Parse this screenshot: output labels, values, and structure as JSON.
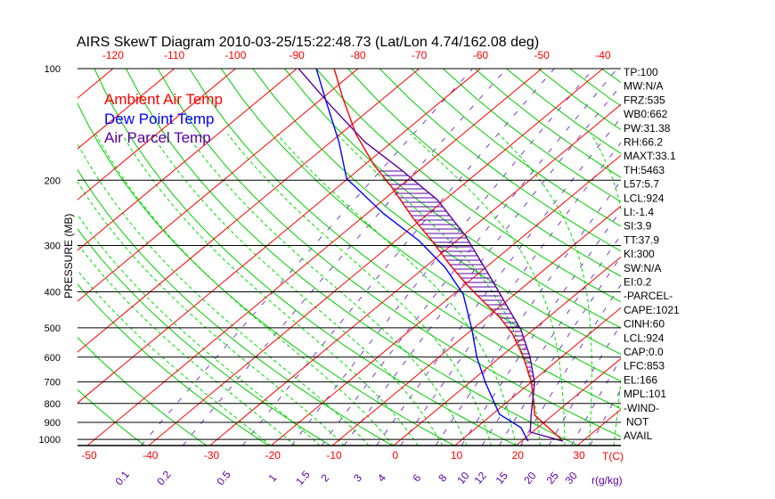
{
  "chart_data": {
    "type": "line",
    "title": "AIRS SkewT Diagram 2010-03-25/15:22:48.73 (Lat/Lon 4.74/162.08 deg)",
    "ylabel": "PRESSURE (MB)",
    "xlabel": "T(C)",
    "mixing_ratio_label": "r(g/kg)",
    "ylim": [
      1040,
      100
    ],
    "pressure_ticks": [
      "100",
      "200",
      "300",
      "400",
      "500",
      "600",
      "700",
      "800",
      "900",
      "1000"
    ],
    "top_temp_ticks": [
      "-120",
      "-110",
      "-100",
      "-90",
      "-80",
      "-70",
      "-60",
      "-50",
      "-40"
    ],
    "bottom_temp_ticks": [
      "-50",
      "-40",
      "-30",
      "-20",
      "-10",
      "0",
      "10",
      "20",
      "30"
    ],
    "mixing_ratio_ticks": [
      "0.1",
      "0.2",
      "0.5",
      "1",
      "1.5",
      "2",
      "3",
      "4",
      "6",
      "8",
      "10",
      "12",
      "15",
      "20",
      "25",
      "30"
    ],
    "legend": [
      {
        "label": "Ambient Air Temp",
        "color": "#ff0000"
      },
      {
        "label": "Dew Point Temp",
        "color": "#0000ff"
      },
      {
        "label": "Air Parcel Temp",
        "color": "#5a00a0"
      }
    ],
    "series": [
      {
        "name": "Ambient Air Temp",
        "color": "#ff0000",
        "p": [
          1000,
          861,
          700,
          600,
          520,
          466,
          429,
          384,
          338,
          291,
          254,
          209,
          182,
          150,
          120,
          100
        ],
        "T": [
          26.2,
          17.1,
          10.0,
          3.8,
          -2.5,
          -8.2,
          -13.1,
          -19.5,
          -26.4,
          -34.1,
          -41.4,
          -51.1,
          -58.4,
          -67.5,
          -76.7,
          -83.9
        ]
      },
      {
        "name": "Dew Point Temp",
        "color": "#0000ff",
        "p": [
          1011,
          930,
          855,
          704,
          600,
          506,
          406,
          344,
          291,
          246,
          215,
          198,
          158,
          120,
          100
        ],
        "T": [
          21.1,
          17.3,
          11.1,
          2.7,
          -3.8,
          -10.0,
          -18.4,
          -26.6,
          -36.2,
          -47.3,
          -55.3,
          -60.2,
          -68.6,
          -79.6,
          -86.8
        ]
      },
      {
        "name": "Air Parcel Temp",
        "color": "#5a00a0",
        "p": [
          1011,
          956,
          855,
          704,
          597,
          506,
          441,
          363,
          281,
          226,
          187,
          158,
          126,
          100
        ],
        "T": [
          26.8,
          19.7,
          16.3,
          10.7,
          4.7,
          -2.0,
          -8.5,
          -17.6,
          -29.8,
          -41.2,
          -53.2,
          -64.3,
          -77.1,
          -89.7
        ]
      }
    ],
    "indices": [
      "TP:100",
      "MW:N/A",
      "FRZ:535",
      "WB0:662",
      "PW:31.38",
      "RH:66.2",
      "MAXT:33.1",
      "TH:5463",
      "L57:5.7",
      "LCL:924",
      "LI:-1.4",
      "SI:3.9",
      "TT:37.9",
      "KI:300",
      "SW:N/A",
      "EI:0.2",
      "-PARCEL-",
      "CAPE:1021",
      "CINH:60",
      "LCL:924",
      "CAP:0.0",
      "LFC:853",
      "EL:166",
      "MPL:101",
      "-WIND-",
      "NOT",
      "AVAIL"
    ],
    "colors": {
      "isotherm": "#ff0000",
      "dry_adiabat": "#00cc00",
      "moist_adiabat": "#00dd00",
      "mixing_ratio": "#7a3cc8",
      "hatch": "#5a00a0",
      "frame": "#000000"
    }
  }
}
